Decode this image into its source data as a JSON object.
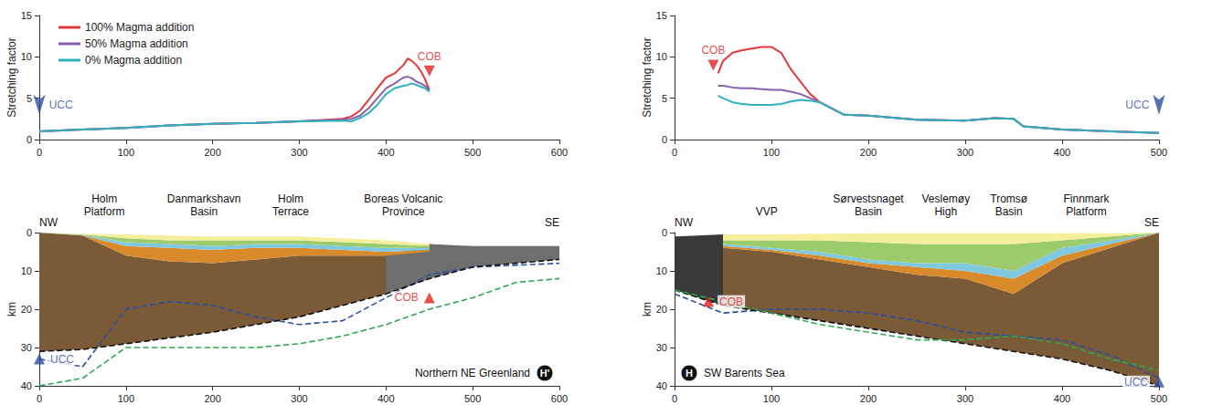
{
  "chart_data": [
    {
      "type": "line",
      "ylabel": "Stretching factor",
      "x": [
        0,
        50,
        100,
        150,
        200,
        250,
        300,
        350,
        360,
        370,
        380,
        390,
        400,
        410,
        420,
        425,
        430,
        435,
        440,
        445,
        450
      ],
      "series": [
        {
          "name": "100% Magma addition",
          "color": "#e03a3a",
          "values": [
            1,
            1.2,
            1.4,
            1.7,
            1.9,
            2.0,
            2.2,
            2.5,
            2.8,
            3.5,
            4.8,
            6.2,
            7.5,
            8.0,
            9.0,
            9.8,
            9.5,
            9.0,
            8.3,
            7.3,
            6.0
          ]
        },
        {
          "name": "50% Magma addition",
          "color": "#8a5fb0",
          "values": [
            1,
            1.2,
            1.4,
            1.7,
            1.9,
            2.0,
            2.2,
            2.4,
            2.5,
            2.9,
            3.8,
            5.0,
            6.2,
            6.8,
            7.5,
            7.6,
            7.4,
            7.0,
            6.8,
            6.5,
            6.0
          ]
        },
        {
          "name": "0% Magma addition",
          "color": "#2fb0c0",
          "values": [
            1,
            1.2,
            1.4,
            1.7,
            1.9,
            2.0,
            2.2,
            2.3,
            2.2,
            2.6,
            3.2,
            4.2,
            5.5,
            6.2,
            6.5,
            6.6,
            6.8,
            6.6,
            6.4,
            6.2,
            5.8
          ]
        }
      ],
      "xlim": [
        0,
        600
      ],
      "xticks": [
        0,
        100,
        200,
        300,
        400,
        500,
        600
      ],
      "ylim": [
        0,
        15
      ],
      "yticks": [
        0,
        5,
        10,
        15
      ],
      "grid": false,
      "legend": "upper left",
      "markers": [
        {
          "text": "COB",
          "x": 450,
          "y": 8.3,
          "color": "#e02020",
          "marker": "triangle-down"
        },
        {
          "text": "UCC",
          "x": 0,
          "y": 3,
          "color": "#2d4fa0",
          "marker": "arrow-down"
        }
      ]
    },
    {
      "type": "line",
      "ylabel": "Stretching factor",
      "x": [
        45,
        50,
        60,
        70,
        80,
        90,
        100,
        110,
        120,
        130,
        140,
        150,
        175,
        200,
        250,
        300,
        330,
        350,
        360,
        380,
        400,
        450,
        500
      ],
      "series": [
        {
          "name": "100% Magma addition",
          "color": "#e03a3a",
          "values": [
            8.0,
            9.5,
            10.5,
            10.8,
            11.0,
            11.2,
            11.2,
            10.5,
            8.5,
            7.0,
            5.5,
            4.5,
            3.0,
            2.9,
            2.4,
            2.3,
            2.6,
            2.5,
            1.6,
            1.4,
            1.2,
            1.0,
            0.8
          ]
        },
        {
          "name": "50% Magma addition",
          "color": "#8a5fb0",
          "values": [
            6.5,
            6.5,
            6.3,
            6.2,
            6.2,
            6.1,
            6.0,
            6.0,
            5.8,
            5.5,
            5.0,
            4.5,
            3.0,
            2.9,
            2.4,
            2.3,
            2.6,
            2.5,
            1.6,
            1.4,
            1.2,
            1.0,
            0.8
          ]
        },
        {
          "name": "0% Magma addition",
          "color": "#2fb0c0",
          "values": [
            5.3,
            5.0,
            4.5,
            4.3,
            4.2,
            4.2,
            4.2,
            4.3,
            4.6,
            4.8,
            4.7,
            4.5,
            3.0,
            2.9,
            2.4,
            2.3,
            2.6,
            2.5,
            1.6,
            1.4,
            1.2,
            1.0,
            0.8
          ]
        }
      ],
      "xlim": [
        0,
        500
      ],
      "xticks": [
        0,
        100,
        200,
        300,
        400,
        500
      ],
      "ylim": [
        0,
        15
      ],
      "yticks": [
        0,
        5,
        10,
        15
      ],
      "grid": false,
      "markers": [
        {
          "text": "COB",
          "x": 40,
          "y": 9,
          "color": "#e02020",
          "marker": "triangle-down"
        },
        {
          "text": "UCC",
          "x": 500,
          "y": 3,
          "color": "#2d4fa0",
          "marker": "arrow-down"
        }
      ]
    },
    {
      "type": "section",
      "ylabel": "km",
      "x": [
        0,
        50,
        100,
        150,
        200,
        250,
        300,
        350,
        400,
        450,
        500,
        550,
        600
      ],
      "series": [
        {
          "type": "band",
          "color": "#7b5a37",
          "values": [
            0,
            0.8,
            6,
            7.5,
            8,
            7,
            6,
            6,
            6,
            5,
            null,
            null,
            null
          ],
          "lower": [
            31,
            30.5,
            29,
            27.5,
            26,
            24,
            22,
            19,
            16,
            12,
            null,
            null,
            null
          ]
        },
        {
          "type": "band",
          "color": "#6e6e6e",
          "values": [
            null,
            null,
            null,
            null,
            null,
            null,
            null,
            null,
            6,
            3,
            3.5,
            3.5,
            3.5
          ],
          "lower": [
            null,
            null,
            null,
            null,
            null,
            null,
            null,
            null,
            16,
            12,
            9,
            8,
            7
          ]
        },
        {
          "type": "band",
          "color": "#d98a2b",
          "values": [
            0,
            0.7,
            3.5,
            4,
            4.5,
            4,
            4,
            4.5,
            5,
            4.5,
            null,
            null,
            null
          ],
          "lower": [
            0,
            0.8,
            6,
            7.5,
            8,
            7,
            6,
            6,
            6,
            5,
            null,
            null,
            null
          ]
        },
        {
          "type": "band",
          "color": "#7fc8e0",
          "values": [
            0,
            0.6,
            2.5,
            3,
            3.5,
            3,
            3,
            3.5,
            4,
            4,
            null,
            null,
            null
          ],
          "lower": [
            0,
            0.7,
            3.5,
            4,
            4.5,
            4,
            4,
            4.5,
            5,
            4.5,
            null,
            null,
            null
          ]
        },
        {
          "type": "band",
          "color": "#9ccb6b",
          "values": [
            0,
            0.5,
            1.5,
            2,
            2,
            2,
            2,
            2.5,
            3,
            3.5,
            null,
            null,
            null
          ],
          "lower": [
            0,
            0.6,
            2.5,
            3,
            3.5,
            3,
            3,
            3.5,
            4,
            4,
            null,
            null,
            null
          ]
        },
        {
          "type": "band",
          "color": "#f5ee9a",
          "values": [
            0,
            0.3,
            0.5,
            0.8,
            1,
            1,
            1,
            1.5,
            2,
            3,
            null,
            null,
            null
          ],
          "lower": [
            0,
            0.5,
            1.5,
            2,
            2,
            2,
            2,
            2.5,
            3,
            3.5,
            null,
            null,
            null
          ]
        },
        {
          "type": "line",
          "color": "#2a4ea0",
          "line_style": "dashed",
          "values": [
            33,
            35,
            20,
            18,
            19,
            22,
            24,
            23,
            17,
            11,
            9,
            8.5,
            8
          ]
        },
        {
          "type": "line",
          "color": "#111111",
          "line_style": "dashed",
          "values": [
            31,
            30.5,
            29,
            27.5,
            26,
            24,
            22,
            19,
            16,
            12,
            9,
            8,
            7
          ]
        },
        {
          "type": "line",
          "color": "#2fa84f",
          "line_style": "dashed",
          "values": [
            40,
            38,
            30,
            30,
            30,
            30,
            29,
            27,
            24,
            20,
            17,
            13,
            12
          ]
        }
      ],
      "xlim": [
        0,
        600
      ],
      "xticks": [
        0,
        100,
        200,
        300,
        400,
        500,
        600
      ],
      "ylim": [
        40,
        0
      ],
      "yticks": [
        0,
        10,
        20,
        30,
        40
      ],
      "grid": false,
      "annotations": [
        {
          "text": "NW",
          "x": 0
        },
        {
          "text": "Holm\nPlatform",
          "x": 75
        },
        {
          "text": "Danmarkshavn\nBasin",
          "x": 190
        },
        {
          "text": "Holm\nTerrace",
          "x": 290
        },
        {
          "text": "Boreas Volcanic\nProvince",
          "x": 420
        },
        {
          "text": "SE",
          "x": 600
        }
      ],
      "caption": "Northern NE Greenland",
      "panel": "H'",
      "markers": [
        {
          "text": "COB",
          "x": 450,
          "y": 17,
          "color": "#e02020",
          "marker": "triangle-up"
        },
        {
          "text": "UCC",
          "x": 0,
          "y": 33,
          "color": "#2d4fa0",
          "marker": "triangle-up"
        }
      ]
    },
    {
      "type": "section",
      "ylabel": "km",
      "x": [
        0,
        50,
        100,
        150,
        200,
        250,
        300,
        350,
        400,
        450,
        500
      ],
      "series": [
        {
          "type": "band",
          "color": "#7b5a37",
          "values": [
            null,
            4,
            5,
            7,
            9,
            11,
            12,
            16,
            8,
            4,
            0
          ],
          "lower": [
            null,
            19,
            21,
            23,
            25,
            27,
            29,
            31,
            33,
            36,
            40
          ]
        },
        {
          "type": "band",
          "color": "#3a3a3a",
          "values": [
            1,
            0.5,
            null,
            null,
            null,
            null,
            null,
            null,
            null,
            null,
            null
          ],
          "lower": [
            15,
            19,
            null,
            null,
            null,
            null,
            null,
            null,
            null,
            null,
            null
          ]
        },
        {
          "type": "band",
          "color": "#d98a2b",
          "values": [
            null,
            3.5,
            4.5,
            6,
            8,
            9,
            10,
            12,
            6,
            3,
            0
          ],
          "lower": [
            null,
            4,
            5,
            7,
            9,
            11,
            12,
            16,
            8,
            4,
            0
          ]
        },
        {
          "type": "band",
          "color": "#7fc8e0",
          "values": [
            null,
            3,
            4,
            5,
            7,
            8,
            8,
            10,
            4,
            2,
            0
          ],
          "lower": [
            null,
            3.5,
            4.5,
            6,
            8,
            9,
            10,
            12,
            6,
            3,
            0
          ]
        },
        {
          "type": "band",
          "color": "#9ccb6b",
          "values": [
            null,
            2,
            2,
            2,
            2.5,
            3,
            3,
            3,
            2,
            1,
            0
          ],
          "lower": [
            null,
            3,
            4,
            5,
            7,
            8,
            8,
            10,
            4,
            2,
            0
          ]
        },
        {
          "type": "band",
          "color": "#f5ee9a",
          "values": [
            null,
            0.5,
            0.5,
            0.3,
            0.2,
            0.2,
            0.2,
            0.2,
            0.2,
            0.2,
            0
          ],
          "lower": [
            null,
            2,
            2,
            2,
            2.5,
            3,
            3,
            3,
            2,
            1,
            0
          ]
        },
        {
          "type": "line",
          "color": "#2a4ea0",
          "line_style": "dashed",
          "values": [
            16,
            21,
            20,
            20,
            21,
            23,
            26,
            27,
            28,
            32,
            38
          ]
        },
        {
          "type": "line",
          "color": "#111111",
          "line_style": "dashed",
          "values": [
            15,
            19,
            21,
            23,
            25,
            27,
            29,
            31,
            33,
            36,
            40
          ]
        },
        {
          "type": "line",
          "color": "#2fa84f",
          "line_style": "dashed",
          "values": [
            15,
            18,
            21,
            24,
            26,
            28,
            28,
            27,
            29,
            33,
            36
          ]
        }
      ],
      "xlim": [
        0,
        500
      ],
      "xticks": [
        0,
        100,
        200,
        300,
        400,
        500
      ],
      "ylim": [
        40,
        0
      ],
      "yticks": [
        0,
        10,
        20,
        30,
        40
      ],
      "grid": false,
      "annotations": [
        {
          "text": "NW",
          "x": 0
        },
        {
          "text": "VVP",
          "x": 95
        },
        {
          "text": "Sørvestsnaget\nBasin",
          "x": 200
        },
        {
          "text": "Veslemøy\nHigh",
          "x": 280
        },
        {
          "text": "Tromsø\nBasin",
          "x": 345
        },
        {
          "text": "Finnmark\nPlatform",
          "x": 425
        },
        {
          "text": "SE",
          "x": 500
        }
      ],
      "caption": "SW Barents Sea",
      "panel": "H",
      "markers": [
        {
          "text": "COB",
          "x": 35,
          "y": 18,
          "color": "#e02020",
          "marker": "triangle-up"
        },
        {
          "text": "UCC",
          "x": 500,
          "y": 39,
          "color": "#2d4fa0",
          "marker": "triangle-up"
        }
      ]
    }
  ]
}
